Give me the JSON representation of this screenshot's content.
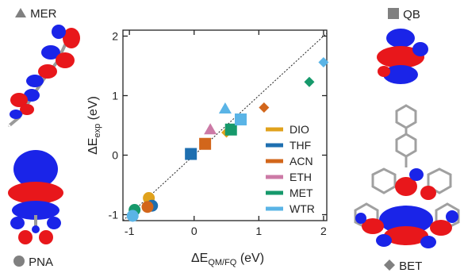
{
  "labels": {
    "mer": "MER",
    "qb": "QB",
    "pna": "PNA",
    "bet": "BET"
  },
  "colors": {
    "DIO": "#e0a21c",
    "THF": "#1e6fb0",
    "ACN": "#d2661b",
    "ETH": "#cc7aa6",
    "MET": "#16996b",
    "WTR": "#5ab4e6",
    "marker_gray": "#808080",
    "orbital_red": "#e8171b",
    "orbital_blue": "#1a24e8"
  },
  "chart_data": {
    "type": "scatter",
    "xlabel_main": "ΔE",
    "xlabel_sub": "QM/FQ",
    "xlabel_unit": " (eV)",
    "ylabel_main": "ΔE",
    "ylabel_sub": "exp",
    "ylabel_unit": " (eV)",
    "xlim": [
      -1.1,
      2.05
    ],
    "ylim": [
      -1.1,
      2.1
    ],
    "xticks": [
      "-1",
      "0",
      "1",
      "2"
    ],
    "yticks": [
      "-1",
      "0",
      "1",
      "2"
    ],
    "diagonal_reference": true,
    "legend_position": "bottom-right",
    "marker_key": {
      "MER": "triangle",
      "QB": "square",
      "PNA": "circle",
      "BET": "diamond"
    },
    "series": [
      {
        "name": "DIO",
        "points": [
          {
            "x": -0.7,
            "y": -0.72,
            "marker": "circle"
          },
          {
            "x": 0.5,
            "y": 0.38,
            "marker": "diamond"
          }
        ]
      },
      {
        "name": "THF",
        "points": [
          {
            "x": -0.65,
            "y": -0.85,
            "marker": "circle"
          },
          {
            "x": -0.05,
            "y": 0.02,
            "marker": "square"
          }
        ]
      },
      {
        "name": "ACN",
        "points": [
          {
            "x": -0.72,
            "y": -0.87,
            "marker": "circle"
          },
          {
            "x": 0.17,
            "y": 0.19,
            "marker": "square"
          },
          {
            "x": 1.08,
            "y": 0.8,
            "marker": "diamond"
          }
        ]
      },
      {
        "name": "ETH",
        "points": [
          {
            "x": 0.25,
            "y": 0.43,
            "marker": "triangle"
          }
        ]
      },
      {
        "name": "MET",
        "points": [
          {
            "x": -0.92,
            "y": -0.92,
            "marker": "circle"
          },
          {
            "x": 0.57,
            "y": 0.43,
            "marker": "square"
          },
          {
            "x": 1.78,
            "y": 1.23,
            "marker": "diamond"
          }
        ]
      },
      {
        "name": "WTR",
        "points": [
          {
            "x": -0.95,
            "y": -1.02,
            "marker": "circle"
          },
          {
            "x": 0.48,
            "y": 0.78,
            "marker": "triangle"
          },
          {
            "x": 0.72,
            "y": 0.6,
            "marker": "square"
          },
          {
            "x": 2.0,
            "y": 1.56,
            "marker": "diamond"
          }
        ]
      }
    ]
  }
}
